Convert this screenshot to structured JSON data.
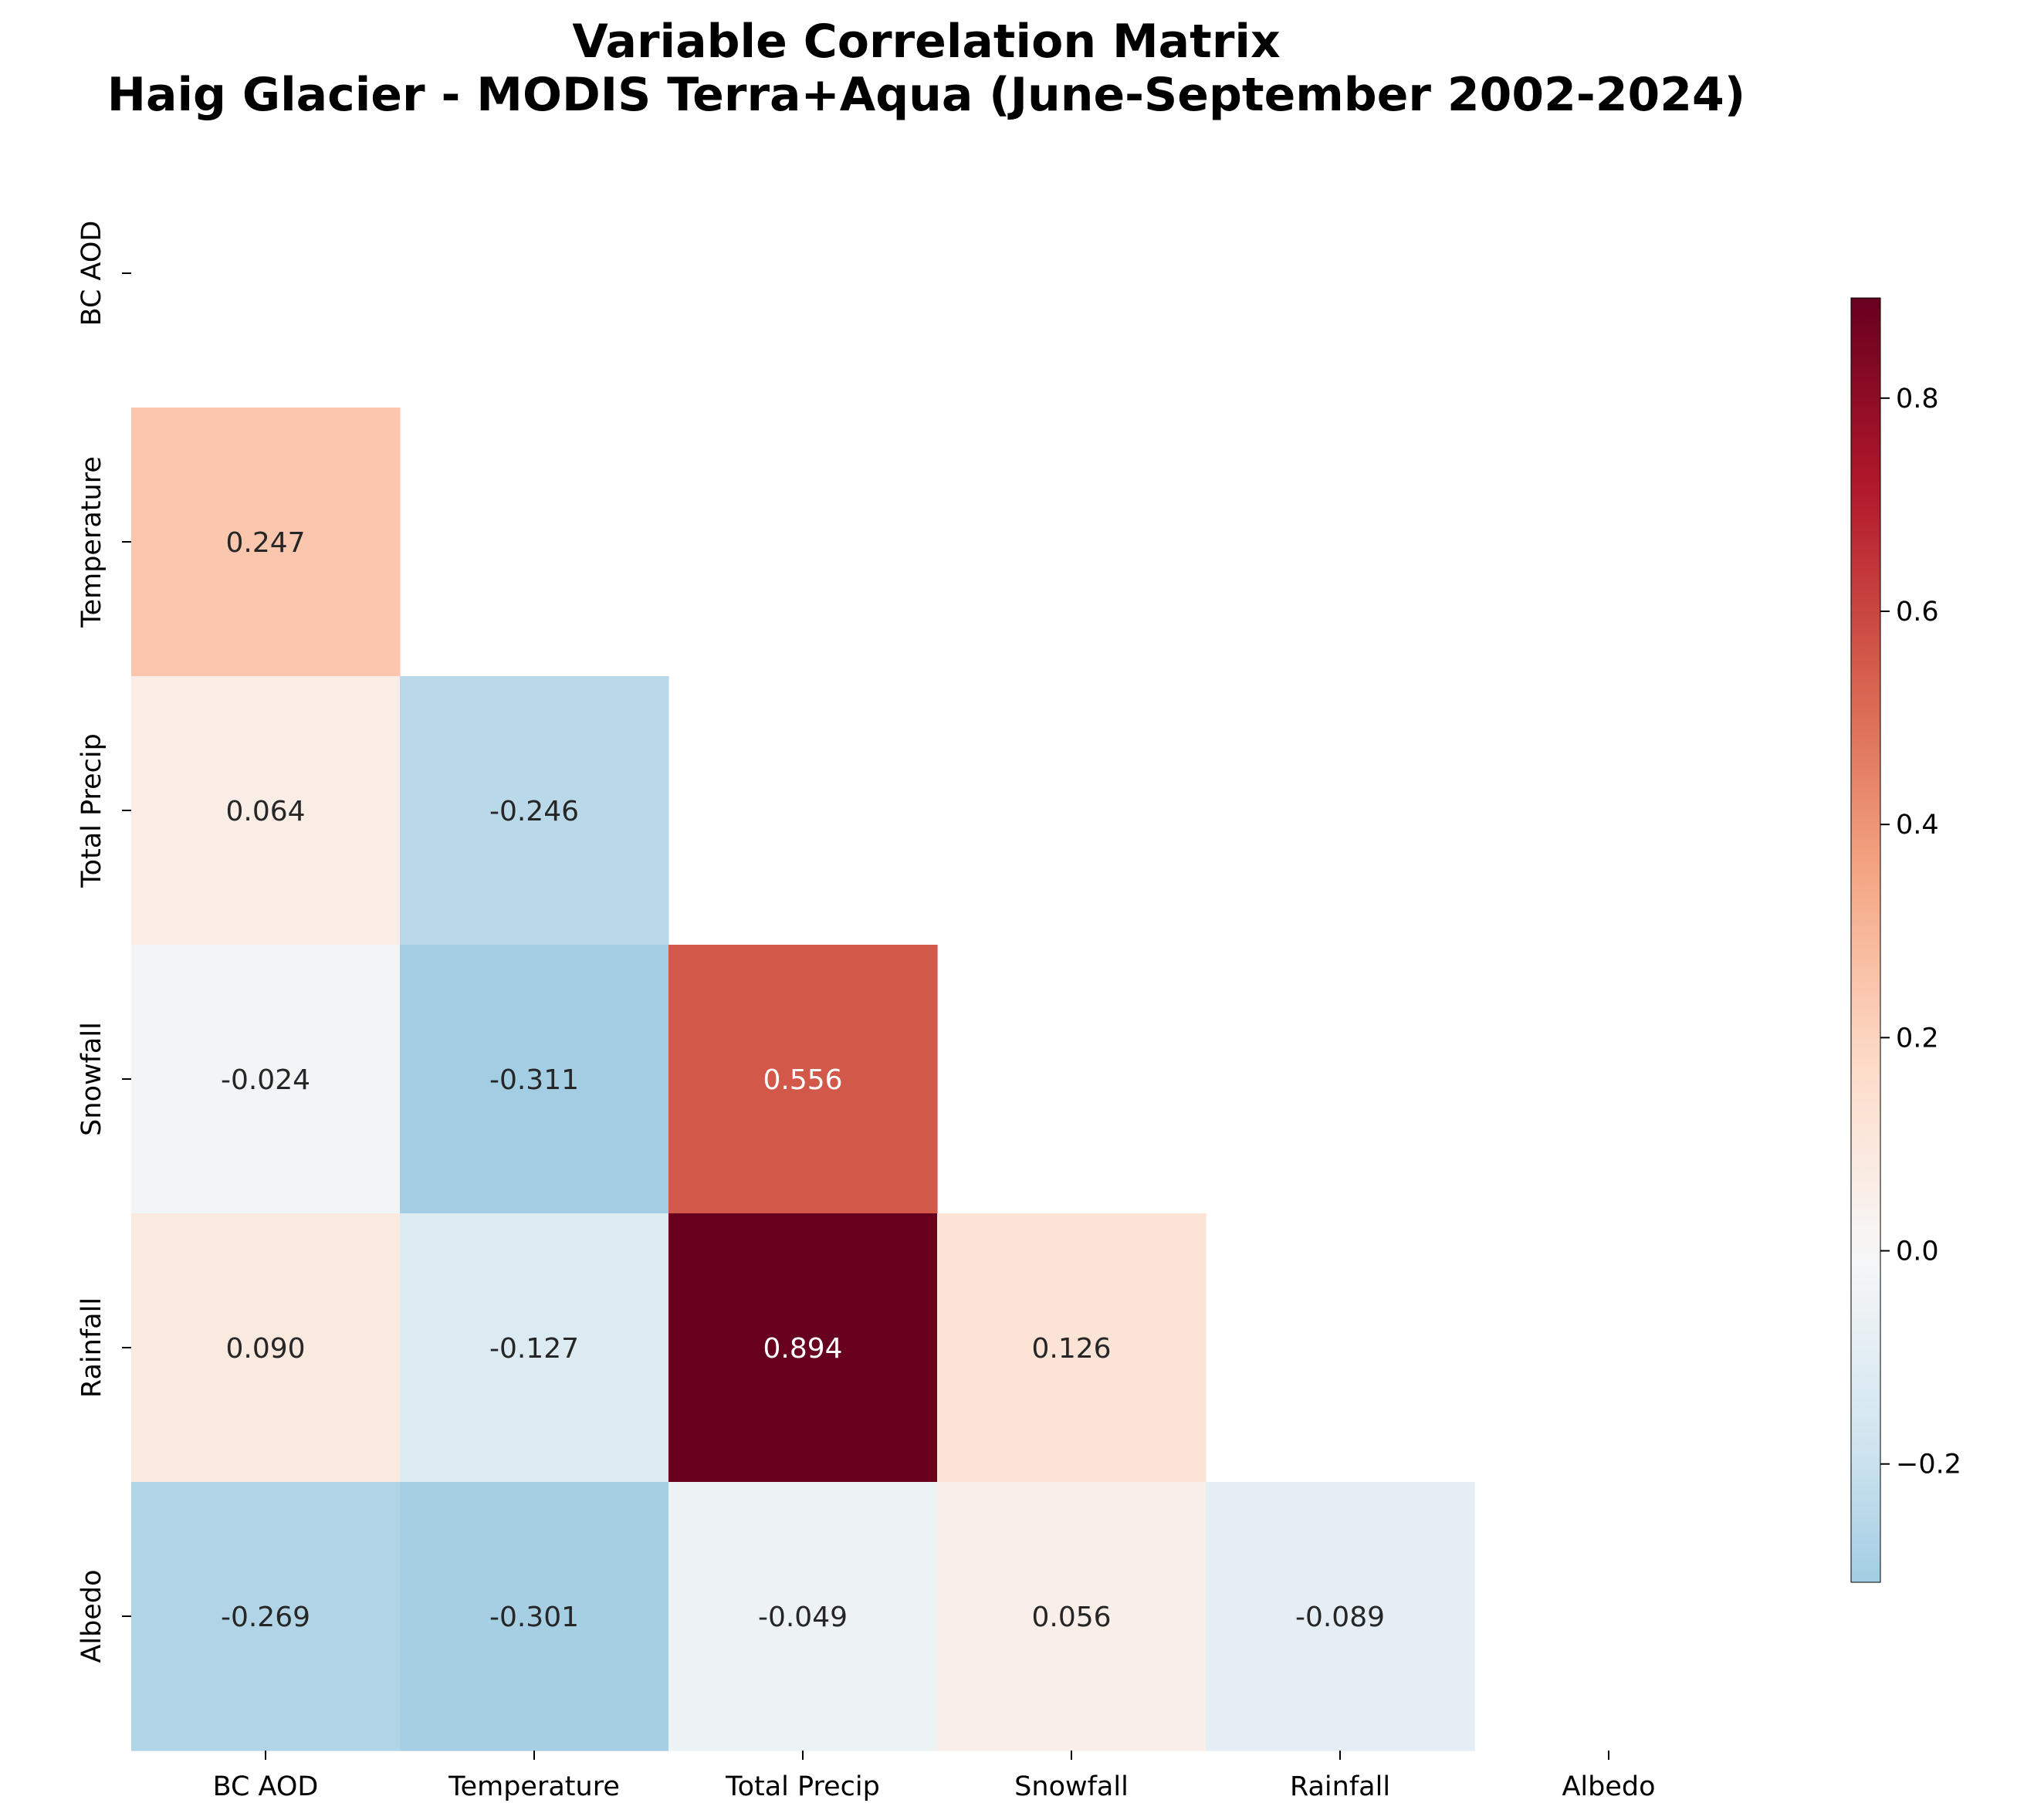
{
  "title_line1": "Variable Correlation Matrix",
  "title_line2": "Haig Glacier - MODIS Terra+Aqua (June-September 2002-2024)",
  "chart_data": {
    "type": "heatmap",
    "variables": [
      "BC AOD",
      "Temperature",
      "Total Precip",
      "Snowfall",
      "Rainfall",
      "Albedo"
    ],
    "mask": "upper-triangle-including-diagonal",
    "cells": [
      {
        "row": "Temperature",
        "col": "BC AOD",
        "value": 0.247,
        "label": "0.247"
      },
      {
        "row": "Total Precip",
        "col": "BC AOD",
        "value": 0.064,
        "label": "0.064"
      },
      {
        "row": "Total Precip",
        "col": "Temperature",
        "value": -0.246,
        "label": "-0.246"
      },
      {
        "row": "Snowfall",
        "col": "BC AOD",
        "value": -0.024,
        "label": "-0.024"
      },
      {
        "row": "Snowfall",
        "col": "Temperature",
        "value": -0.311,
        "label": "-0.311"
      },
      {
        "row": "Snowfall",
        "col": "Total Precip",
        "value": 0.556,
        "label": "0.556"
      },
      {
        "row": "Rainfall",
        "col": "BC AOD",
        "value": 0.09,
        "label": "0.090"
      },
      {
        "row": "Rainfall",
        "col": "Temperature",
        "value": -0.127,
        "label": "-0.127"
      },
      {
        "row": "Rainfall",
        "col": "Total Precip",
        "value": 0.894,
        "label": "0.894"
      },
      {
        "row": "Rainfall",
        "col": "Snowfall",
        "value": 0.126,
        "label": "0.126"
      },
      {
        "row": "Albedo",
        "col": "BC AOD",
        "value": -0.269,
        "label": "-0.269"
      },
      {
        "row": "Albedo",
        "col": "Temperature",
        "value": -0.301,
        "label": "-0.301"
      },
      {
        "row": "Albedo",
        "col": "Total Precip",
        "value": -0.049,
        "label": "-0.049"
      },
      {
        "row": "Albedo",
        "col": "Snowfall",
        "value": 0.056,
        "label": "0.056"
      },
      {
        "row": "Albedo",
        "col": "Rainfall",
        "value": -0.089,
        "label": "-0.089"
      }
    ],
    "colormap": "RdBu_r",
    "center": 0,
    "vmin": -0.311,
    "vmax": 0.894,
    "colorbar_ticks": [
      -0.2,
      0.0,
      0.2,
      0.4,
      0.6,
      0.8
    ],
    "colorbar_tick_labels": [
      "−0.2",
      "0.0",
      "0.2",
      "0.4",
      "0.6",
      "0.8"
    ]
  }
}
